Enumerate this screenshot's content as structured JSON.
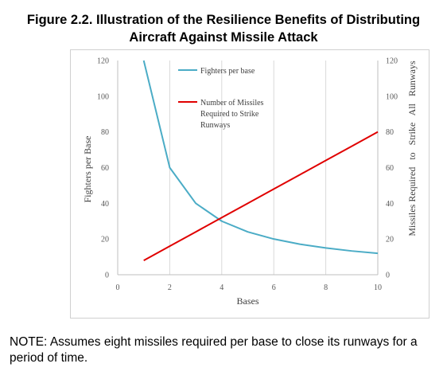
{
  "header": {
    "title_line1": "Figure 2.2. Illustration of the Resilience Benefits of Distributing",
    "title_line2": "Aircraft Against Missile Attack"
  },
  "note": "NOTE: Assumes eight missiles required per base to close its runways for a period of time.",
  "chart_data": {
    "type": "line",
    "x": [
      1,
      2,
      3,
      4,
      5,
      6,
      7,
      8,
      9,
      10
    ],
    "xlabel": "Bases",
    "ylabel_left": "Fighters per Base",
    "ylabel_right": "Missiles Required   to   Strike   All   Runways",
    "xlim": [
      0,
      10
    ],
    "ylim": [
      0,
      120
    ],
    "xticks": [
      0,
      2,
      4,
      6,
      8,
      10
    ],
    "yticks": [
      0,
      20,
      40,
      60,
      80,
      100,
      120
    ],
    "grid": "vertical",
    "legend_position": "top-center",
    "series": [
      {
        "name": "Fighters   per   base",
        "axis": "left",
        "color": "#4bacc6",
        "values": [
          120,
          60,
          40,
          30,
          24,
          20,
          17.1,
          15,
          13.3,
          12
        ]
      },
      {
        "name": "Number   of   Missiles Required   to   Strike Runways",
        "axis": "right",
        "color": "#e00000",
        "values": [
          8,
          16,
          24,
          32,
          40,
          48,
          56,
          64,
          72,
          80
        ]
      }
    ],
    "legend_lines": [
      [
        "Fighters   per   base"
      ],
      [
        "Number   of   Missiles",
        "Required   to   Strike",
        "Runways"
      ]
    ]
  }
}
